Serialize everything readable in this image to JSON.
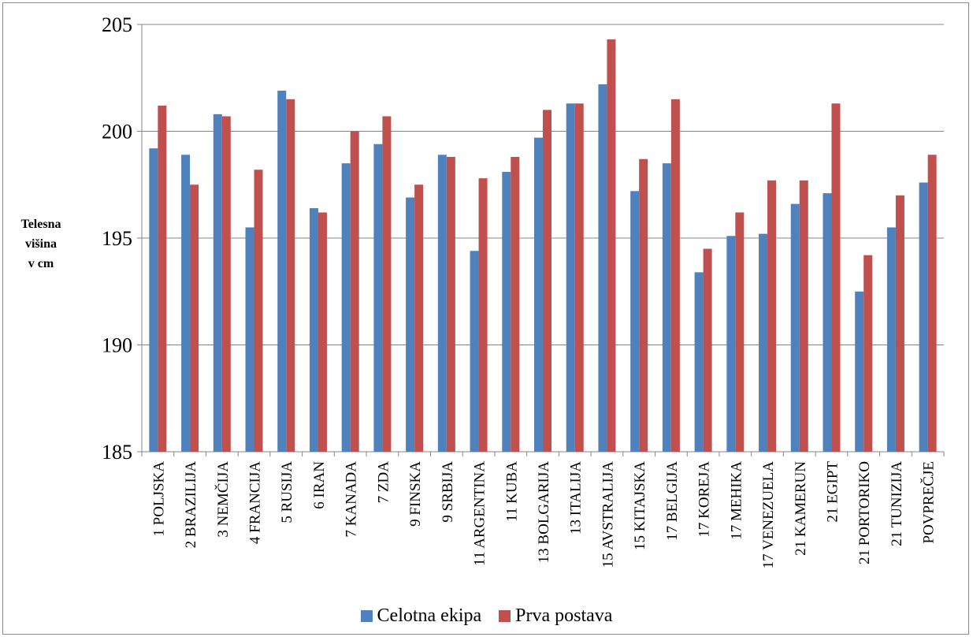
{
  "chart_data": {
    "type": "bar",
    "ylabel": "Telesna\nvišina\nv cm",
    "ylim": [
      185,
      205
    ],
    "yticks": [
      185,
      190,
      195,
      200,
      205
    ],
    "grid": true,
    "legend_position": "bottom",
    "categories": [
      "1 POLJSKA",
      "2 BRAZILIJA",
      "3 NEMČIJA",
      "4 FRANCIJA",
      "5 RUSIJA",
      "6 IRAN",
      "7 KANADA",
      "7 ZDA",
      "9 FINSKA",
      "9 SRBIJA",
      "11 ARGENTINA",
      "11 KUBA",
      "13 BOLGARIJA",
      "13 ITALIJA",
      "15 AVSTRALIJA",
      "15 KITAJSKA",
      "17 BELGIJA",
      "17 KOREJA",
      "17 MEHIKA",
      "17 VENEZUELA",
      "21 KAMERUN",
      "21 EGIPT",
      "21 PORTORIKO",
      "21 TUNIZIJA",
      "POVPREČJE"
    ],
    "series": [
      {
        "name": "Celotna ekipa",
        "color": "#4f81bd",
        "values": [
          199.2,
          198.9,
          200.8,
          195.5,
          201.9,
          196.4,
          198.5,
          199.4,
          196.9,
          198.9,
          194.4,
          198.1,
          199.7,
          201.3,
          202.2,
          197.2,
          198.5,
          193.4,
          195.1,
          195.2,
          196.6,
          197.1,
          192.5,
          195.5,
          197.6
        ]
      },
      {
        "name": "Prva postava",
        "color": "#c0504d",
        "values": [
          201.2,
          197.5,
          200.7,
          198.2,
          201.5,
          196.2,
          200.0,
          200.7,
          197.5,
          198.8,
          197.8,
          198.8,
          201.0,
          201.3,
          204.3,
          198.7,
          201.5,
          194.5,
          196.2,
          197.7,
          197.7,
          201.3,
          194.2,
          197.0,
          198.9
        ]
      }
    ]
  }
}
